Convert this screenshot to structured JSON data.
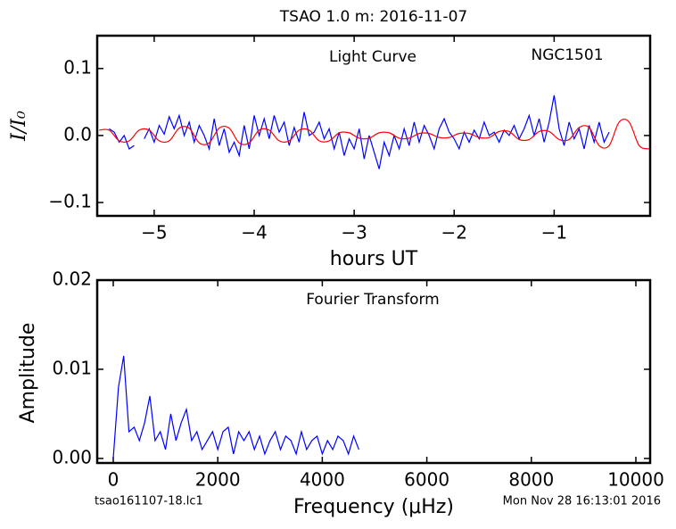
{
  "chart_data": [
    {
      "type": "line",
      "title": "TSAO 1.0 m:  2016-11-07",
      "xlabel": "hours UT",
      "ylabel": "I/I₀",
      "annotations": [
        "Light Curve",
        "NGC1501"
      ],
      "xlim": [
        -5.57,
        -0.04
      ],
      "ylim": [
        -0.12,
        0.149
      ],
      "xticks": [
        {
          "value": -5,
          "label": "−5"
        },
        {
          "value": -4,
          "label": "−4"
        },
        {
          "value": -3,
          "label": "−3"
        },
        {
          "value": -2,
          "label": "−2"
        },
        {
          "value": -1,
          "label": "−1"
        }
      ],
      "yticks": [
        {
          "value": -0.1,
          "label": "−0.1"
        },
        {
          "value": 0,
          "label": "0.0"
        },
        {
          "value": 0.1,
          "label": "0.1"
        }
      ],
      "series": [
        {
          "color": "#0000ff",
          "x": [
            -5.45,
            -5.4,
            -5.35,
            -5.3,
            -5.25,
            -5.2,
            -5.15,
            -5.1,
            -5.05,
            -5.0,
            -4.95,
            -4.9,
            -4.85,
            -4.8,
            -4.75,
            -4.7,
            -4.65,
            -4.6,
            -4.55,
            -4.5,
            -4.45,
            -4.4,
            -4.35,
            -4.3,
            -4.25,
            -4.2,
            -4.15,
            -4.1,
            -4.05,
            -4.0,
            -3.95,
            -3.9,
            -3.85,
            -3.8,
            -3.75,
            -3.7,
            -3.65,
            -3.6,
            -3.55,
            -3.5,
            -3.45,
            -3.4,
            -3.35,
            -3.3,
            -3.25,
            -3.2,
            -3.15,
            -3.1,
            -3.05,
            -3.0,
            -2.95,
            -2.9,
            -2.85,
            -2.8,
            -2.75,
            -2.7,
            -2.65,
            -2.6,
            -2.55,
            -2.5,
            -2.45,
            -2.4,
            -2.35,
            -2.3,
            -2.25,
            -2.2,
            -2.15,
            -2.1,
            -2.05,
            -2.0,
            -1.95,
            -1.9,
            -1.85,
            -1.8,
            -1.75,
            -1.7,
            -1.65,
            -1.6,
            -1.55,
            -1.5,
            -1.45,
            -1.4,
            -1.35,
            -1.3,
            -1.25,
            -1.2,
            -1.15,
            -1.1,
            -1.05,
            -1.0,
            -0.95,
            -0.9,
            -0.85,
            -0.8,
            -0.75,
            -0.7,
            -0.65,
            -0.6,
            -0.55,
            -0.5,
            -0.45
          ],
          "values": [
            0.01,
            0.005,
            -0.01,
            0.0,
            -0.02,
            -0.015,
            null,
            -0.005,
            0.01,
            -0.01,
            0.015,
            0.002,
            0.028,
            0.01,
            0.03,
            0.0,
            0.02,
            -0.01,
            0.015,
            0.0,
            -0.02,
            0.025,
            -0.015,
            0.01,
            -0.025,
            -0.01,
            -0.03,
            0.015,
            -0.02,
            0.03,
            0.0,
            0.025,
            -0.005,
            0.03,
            0.005,
            0.02,
            -0.015,
            0.012,
            -0.01,
            0.035,
            0.0,
            0.005,
            0.02,
            -0.005,
            0.01,
            -0.02,
            0.005,
            -0.03,
            -0.005,
            -0.02,
            0.01,
            -0.035,
            0.0,
            -0.025,
            -0.05,
            -0.01,
            -0.03,
            0.0,
            -0.02,
            0.01,
            -0.015,
            0.02,
            -0.01,
            0.015,
            0.0,
            -0.02,
            0.01,
            0.025,
            0.005,
            -0.005,
            -0.02,
            0.005,
            -0.01,
            0.008,
            -0.005,
            0.02,
            0.0,
            0.005,
            -0.01,
            0.008,
            0.0,
            0.015,
            -0.005,
            0.01,
            0.03,
            0.0,
            0.025,
            -0.01,
            0.02,
            0.06,
            0.01,
            -0.015,
            0.02,
            -0.005,
            0.01,
            -0.02,
            0.015,
            -0.01,
            0.02,
            -0.01,
            0.005
          ]
        },
        {
          "color": "#ff0000",
          "x": [
            -5.55,
            -5.45,
            -5.35,
            -5.25,
            -5.15,
            -5.05,
            -4.95,
            -4.85,
            -4.75,
            -4.65,
            -4.55,
            -4.45,
            -4.35,
            -4.25,
            -4.15,
            -4.05,
            -3.95,
            -3.85,
            -3.75,
            -3.65,
            -3.55,
            -3.45,
            -3.35,
            -3.25,
            -3.15,
            -3.05,
            -2.95,
            -2.85,
            -2.75,
            -2.65,
            -2.55,
            -2.45,
            -2.35,
            -2.25,
            -2.15,
            -2.05,
            -1.95,
            -1.85,
            -1.75,
            -1.65,
            -1.55,
            -1.45,
            -1.35,
            -1.25,
            -1.15,
            -1.05,
            -0.95,
            -0.85,
            -0.75,
            -0.65,
            -0.55,
            -0.45,
            -0.35,
            -0.25,
            -0.15,
            -0.05
          ],
          "values": [
            0.008,
            0.008,
            -0.008,
            -0.008,
            0.008,
            0.008,
            -0.008,
            -0.008,
            0.011,
            0.011,
            -0.011,
            -0.011,
            0.011,
            0.011,
            -0.011,
            -0.011,
            0.008,
            0.008,
            -0.008,
            -0.008,
            0.008,
            0.008,
            -0.008,
            -0.008,
            0.004,
            0.004,
            -0.004,
            -0.004,
            0.004,
            0.004,
            -0.004,
            -0.004,
            0.003,
            0.003,
            -0.003,
            -0.003,
            0.003,
            0.003,
            -0.003,
            -0.003,
            0.006,
            0.006,
            -0.006,
            -0.006,
            0.006,
            0.006,
            -0.006,
            -0.006,
            0.012,
            0.012,
            -0.015,
            -0.015,
            0.02,
            0.02,
            -0.015,
            -0.02
          ]
        }
      ]
    },
    {
      "type": "line",
      "xlabel": "Frequency (μHz)",
      "ylabel": "Amplitude",
      "annotations": [
        "Fourier Transform",
        "tsao161107-18.lc1",
        "Mon Nov 28 16:13:01 2016"
      ],
      "xlim": [
        -307,
        10273
      ],
      "ylim": [
        -0.00051,
        0.02
      ],
      "xticks": [
        0,
        2000,
        4000,
        6000,
        8000,
        10000
      ],
      "yticks": [
        {
          "value": 0,
          "label": "0.00"
        },
        {
          "value": 0.01,
          "label": "0.01"
        },
        {
          "value": 0.02,
          "label": "0.02"
        }
      ],
      "series": [
        {
          "color": "#0000ff",
          "x": [
            0,
            100,
            200,
            300,
            400,
            500,
            600,
            700,
            800,
            900,
            1000,
            1100,
            1200,
            1300,
            1400,
            1500,
            1600,
            1700,
            1800,
            1900,
            2000,
            2100,
            2200,
            2300,
            2400,
            2500,
            2600,
            2700,
            2800,
            2900,
            3000,
            3100,
            3200,
            3300,
            3400,
            3500,
            3600,
            3700,
            3800,
            3900,
            4000,
            4100,
            4200,
            4300,
            4400,
            4500,
            4600,
            4700
          ],
          "values": [
            0.0,
            0.008,
            0.0115,
            0.003,
            0.0035,
            0.002,
            0.004,
            0.007,
            0.002,
            0.003,
            0.001,
            0.005,
            0.002,
            0.004,
            0.0055,
            0.002,
            0.003,
            0.001,
            0.002,
            0.003,
            0.001,
            0.003,
            0.0035,
            0.0005,
            0.003,
            0.002,
            0.003,
            0.001,
            0.0025,
            0.0005,
            0.002,
            0.003,
            0.001,
            0.0025,
            0.002,
            0.0005,
            0.003,
            0.001,
            0.002,
            0.0025,
            0.0005,
            0.002,
            0.001,
            0.0025,
            0.002,
            0.0005,
            0.0025,
            0.001
          ]
        }
      ]
    }
  ]
}
